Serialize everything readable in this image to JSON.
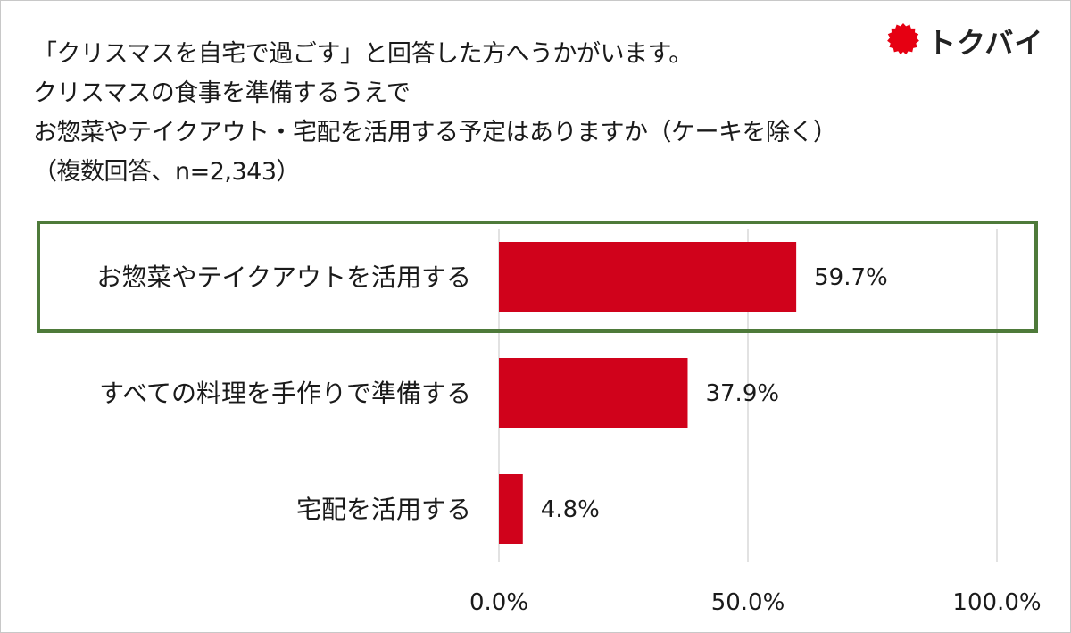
{
  "title_lines": [
    "「クリスマスを自宅で過ごす」と回答した方へうかがいます。",
    "クリスマスの食事を準備するうえで",
    "お惣菜やテイクアウト・宅配を活用する予定はありますか（ケーキを除く）",
    "（複数回答、n=2,343）"
  ],
  "logo": {
    "text": "トクバイ",
    "icon": "red-sun-seal-icon",
    "color": "#e60012"
  },
  "chart_data": {
    "type": "bar",
    "orientation": "horizontal",
    "categories": [
      "お惣菜やテイクアウトを活用する",
      "すべての料理を手作りで準備する",
      "宅配を活用する"
    ],
    "values": [
      59.7,
      37.9,
      4.8
    ],
    "value_labels": [
      "59.7%",
      "37.9%",
      "4.8%"
    ],
    "xlim": [
      0,
      100
    ],
    "xticks": [
      0,
      50,
      100
    ],
    "xtick_labels": [
      "0.0%",
      "50.0%",
      "100.0%"
    ],
    "grid": "vertical",
    "highlighted_category_index": 0,
    "colors": {
      "bar": "#d0021b",
      "highlight_border": "#4e7a3a",
      "gridline": "#d9d9d9"
    }
  }
}
